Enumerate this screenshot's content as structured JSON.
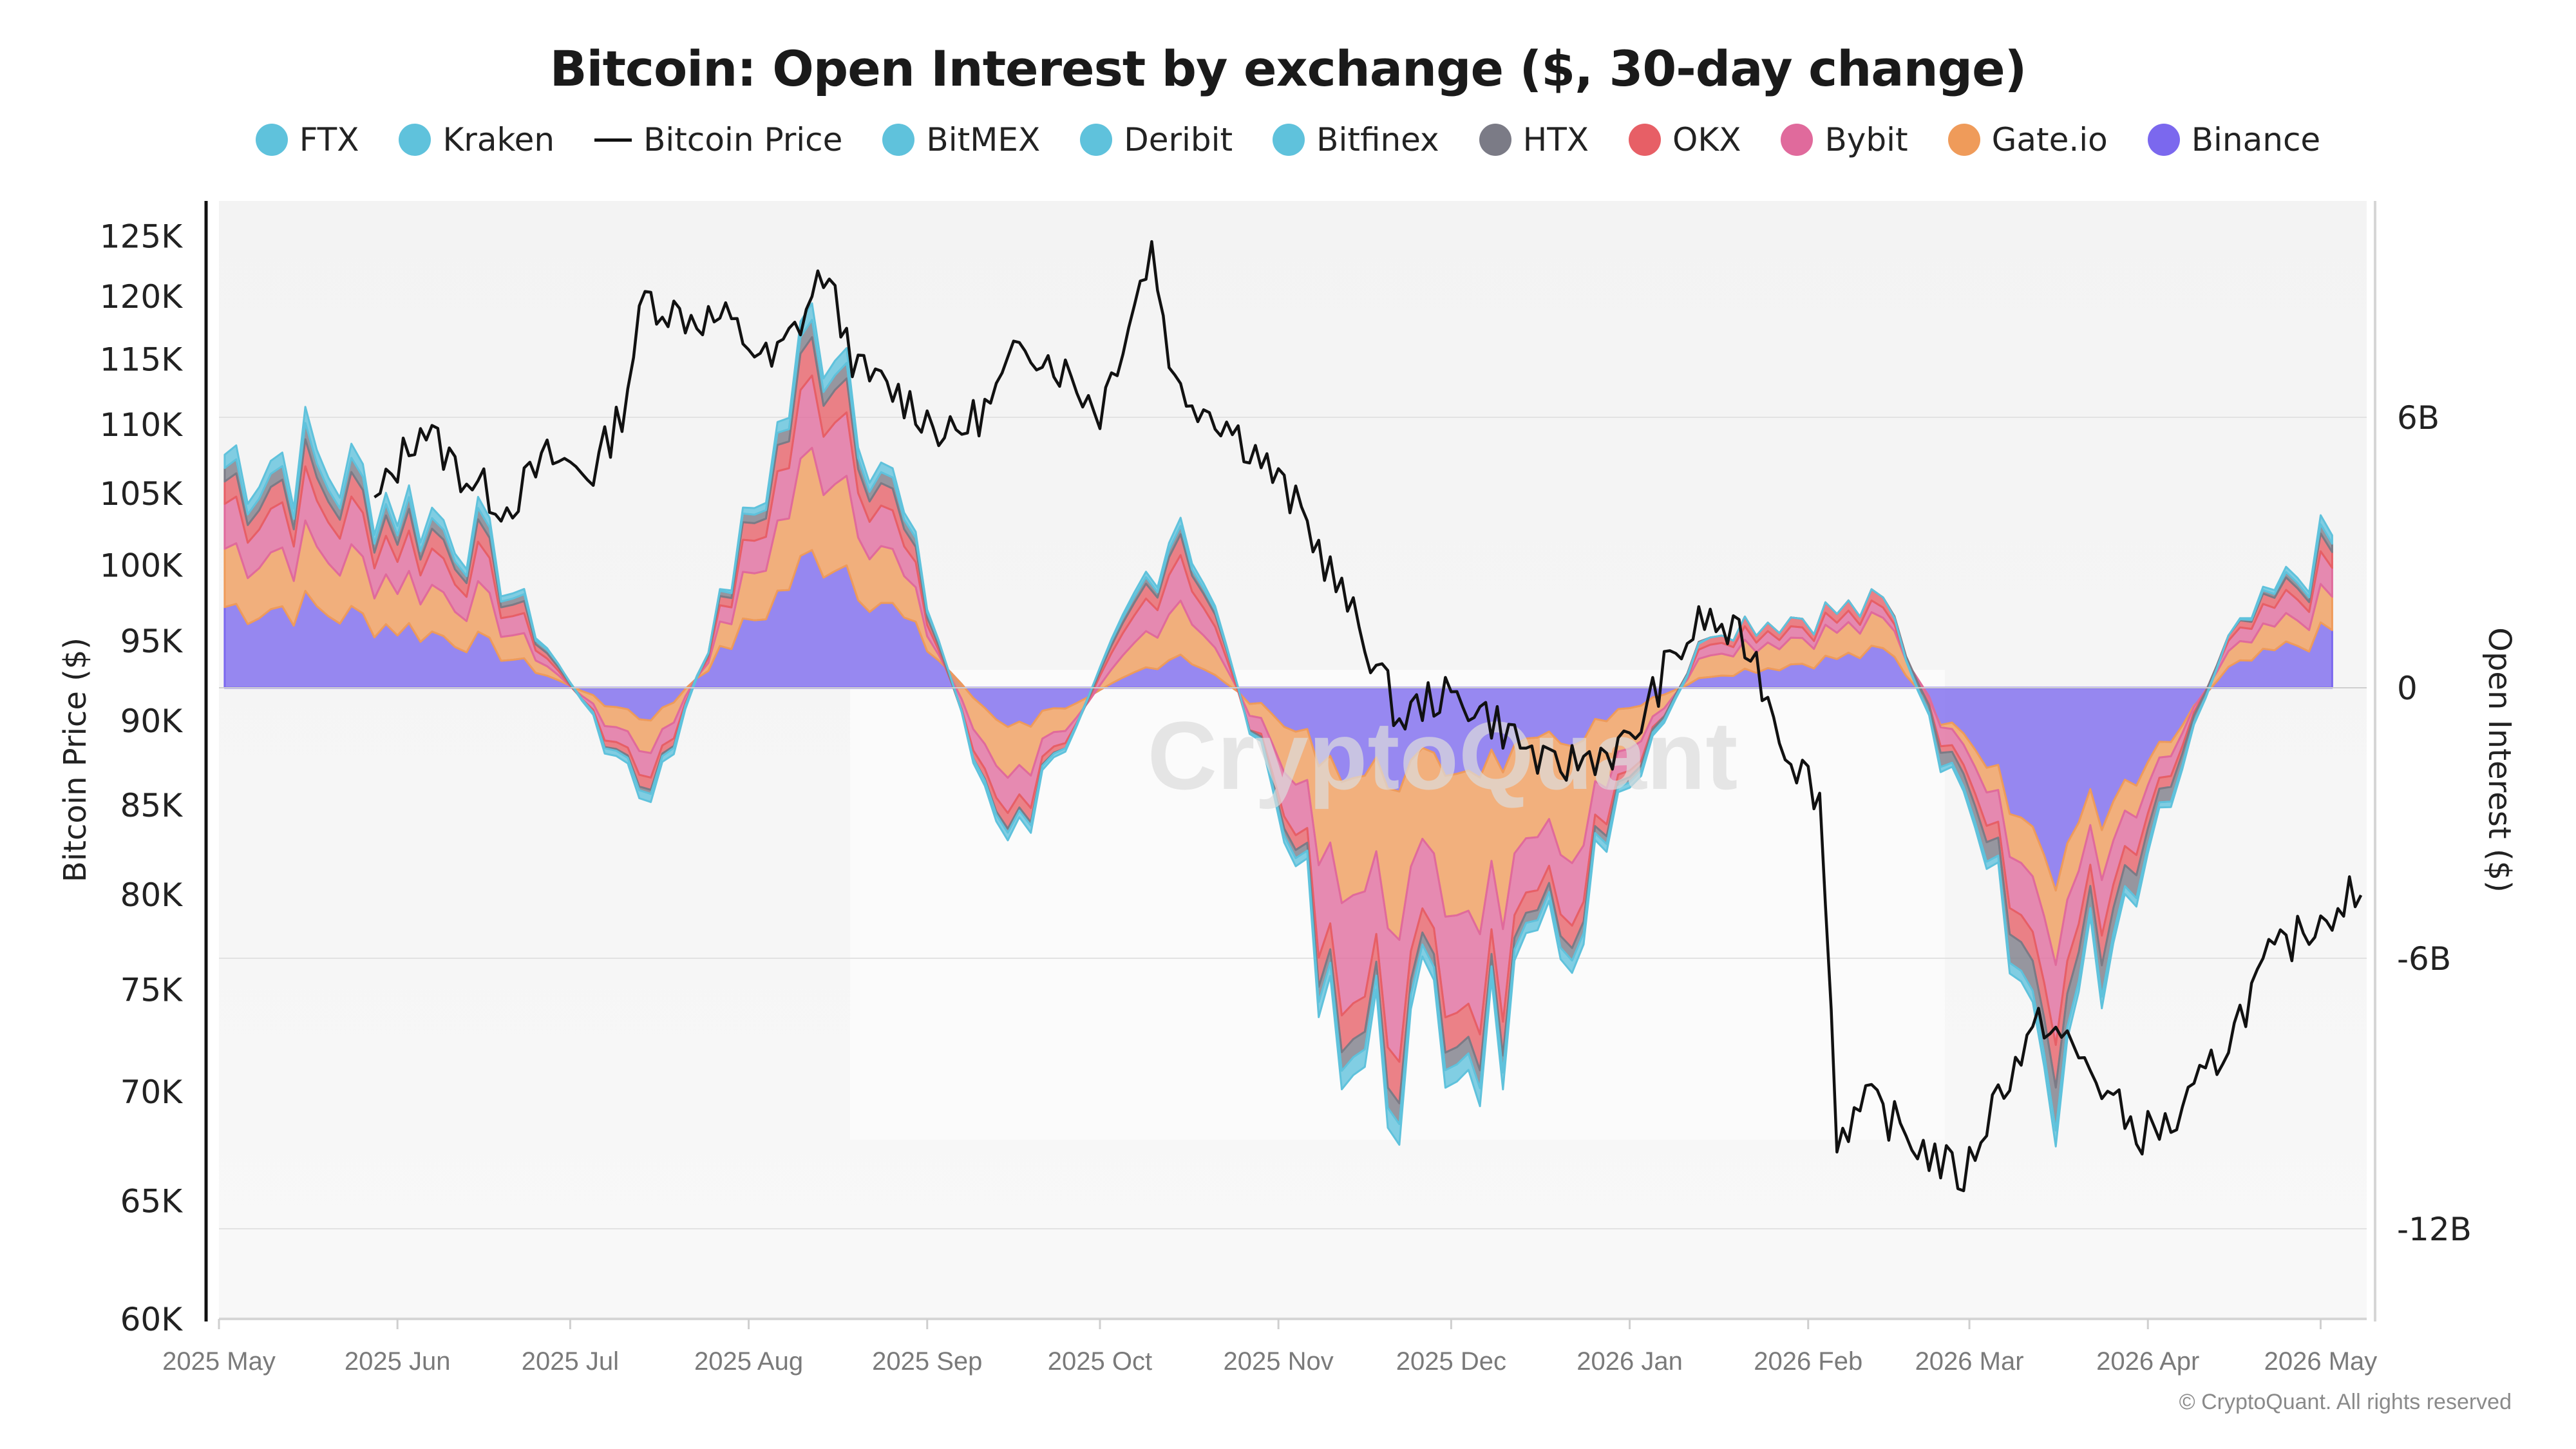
{
  "title": "Bitcoin: Open Interest by exchange ($, 30-day change)",
  "copyright": "© CryptoQuant. All rights reserved",
  "watermark": "CryptoQuant",
  "legend": [
    {
      "name": "FTX",
      "color": "#5fc2dc",
      "kind": "circle"
    },
    {
      "name": "Kraken",
      "color": "#5fc2dc",
      "kind": "circle"
    },
    {
      "name": "Bitcoin Price",
      "color": "#111111",
      "kind": "line"
    },
    {
      "name": "BitMEX",
      "color": "#5fc2dc",
      "kind": "circle"
    },
    {
      "name": "Deribit",
      "color": "#5fc2dc",
      "kind": "circle"
    },
    {
      "name": "Bitfinex",
      "color": "#5fc2dc",
      "kind": "circle"
    },
    {
      "name": "HTX",
      "color": "#7b7b86",
      "kind": "circle"
    },
    {
      "name": "OKX",
      "color": "#e75f66",
      "kind": "circle"
    },
    {
      "name": "Bybit",
      "color": "#e06a9c",
      "kind": "circle"
    },
    {
      "name": "Gate.io",
      "color": "#ef9b5a",
      "kind": "circle"
    },
    {
      "name": "Binance",
      "color": "#7b68ee",
      "kind": "circle"
    }
  ],
  "chart_data": {
    "type": "area",
    "title": "Bitcoin: Open Interest by exchange ($, 30-day change)",
    "ylabel_left": "Bitcoin Price ($)",
    "ylabel_right": "Open Interest ($)",
    "left_axis": {
      "scale": "log",
      "ticks": [
        60000,
        65000,
        70000,
        75000,
        80000,
        85000,
        90000,
        95000,
        100000,
        105000,
        110000,
        115000,
        120000,
        125000
      ],
      "tick_labels": [
        "60K",
        "65K",
        "70K",
        "75K",
        "80K",
        "85K",
        "90K",
        "95K",
        "100K",
        "105K",
        "110K",
        "115K",
        "120K",
        "125K"
      ],
      "range": [
        60000,
        128000
      ]
    },
    "right_axis": {
      "ticks": [
        6,
        0,
        -6,
        -12
      ],
      "tick_labels": [
        "6B",
        "0",
        "-6B",
        "-12B"
      ],
      "unit": "billion USD",
      "range": [
        -14,
        10.8
      ]
    },
    "x_ticks": [
      "2025 May",
      "2025 Jun",
      "2025 Jul",
      "2025 Aug",
      "2025 Sep",
      "2025 Oct",
      "2025 Nov",
      "2025 Dec",
      "2026 Jan",
      "2026 Feb",
      "2026 Mar",
      "2026 Apr",
      "2026 May"
    ],
    "grid": true,
    "legend_position": "top-center",
    "series": [
      {
        "name": "Bitcoin Price",
        "kind": "line",
        "color": "#111111",
        "x": [
          "2025-05-01",
          "2025-05-10",
          "2025-05-20",
          "2025-05-28",
          "2025-06-05",
          "2025-06-12",
          "2025-06-20",
          "2025-06-27",
          "2025-07-05",
          "2025-07-10",
          "2025-07-14",
          "2025-07-20",
          "2025-07-28",
          "2025-08-05",
          "2025-08-10",
          "2025-08-14",
          "2025-08-20",
          "2025-08-28",
          "2025-09-05",
          "2025-09-12",
          "2025-09-18",
          "2025-09-25",
          "2025-10-01",
          "2025-10-06",
          "2025-10-10",
          "2025-10-14",
          "2025-10-22",
          "2025-10-28",
          "2025-11-05",
          "2025-11-12",
          "2025-11-18",
          "2025-11-22",
          "2025-11-28",
          "2025-12-05",
          "2025-12-12",
          "2025-12-18",
          "2025-12-26",
          "2026-01-01",
          "2026-01-07",
          "2026-01-14",
          "2026-01-22",
          "2026-01-28",
          "2026-02-03",
          "2026-02-06",
          "2026-02-12",
          "2026-02-20",
          "2026-02-28",
          "2026-03-06",
          "2026-03-14",
          "2026-03-22",
          "2026-03-30",
          "2026-04-06",
          "2026-04-14",
          "2026-04-22",
          "2026-04-30",
          "2026-05-06",
          "2026-05-08"
        ],
        "y": [
          null,
          null,
          null,
          104000,
          110000,
          106500,
          104000,
          107500,
          106500,
          111000,
          120000,
          118500,
          118000,
          114500,
          118000,
          122000,
          114000,
          112000,
          109000,
          111500,
          116500,
          114000,
          111000,
          118000,
          124000,
          113000,
          110500,
          108000,
          103500,
          98000,
          93500,
          90000,
          91500,
          91000,
          89000,
          87000,
          88000,
          88500,
          93000,
          96500,
          94500,
          88500,
          85500,
          68000,
          69500,
          67500,
          66000,
          70000,
          73500,
          71000,
          68000,
          68500,
          72000,
          76500,
          78500,
          80000,
          79000
        ]
      },
      {
        "name": "Binance",
        "kind": "area",
        "color": "#7b68ee",
        "x": [
          "2025-05",
          "2025-06",
          "2025-07",
          "2025-08",
          "2025-09",
          "2025-10",
          "2025-11",
          "2025-12",
          "2026-01",
          "2026-02",
          "2026-03",
          "2026-04",
          "2026-05"
        ],
        "y": [
          1.8,
          1.0,
          -0.8,
          3.2,
          -1.0,
          0.8,
          -2.0,
          -1.5,
          0.3,
          0.8,
          -3.8,
          0.4,
          1.8
        ]
      },
      {
        "name": "Gate.io",
        "kind": "area",
        "color": "#ef9b5a",
        "x": [
          "2025-05",
          "2025-06",
          "2025-07",
          "2025-08",
          "2025-09",
          "2025-10",
          "2025-11",
          "2025-12",
          "2026-01",
          "2026-02",
          "2026-03",
          "2026-04",
          "2026-05"
        ],
        "y": [
          1.3,
          0.9,
          -0.8,
          2.4,
          -1.3,
          1.3,
          -2.6,
          -3.0,
          0.6,
          0.6,
          -1.4,
          0.3,
          1.0
        ]
      },
      {
        "name": "Bybit",
        "kind": "area",
        "color": "#e06a9c",
        "x": [
          "2025-05",
          "2025-06",
          "2025-07",
          "2025-08",
          "2025-09",
          "2025-10",
          "2025-11",
          "2025-12",
          "2026-01",
          "2026-02",
          "2026-03",
          "2026-04",
          "2026-05"
        ],
        "y": [
          1.0,
          0.7,
          -0.6,
          1.7,
          -0.9,
          1.1,
          -2.4,
          -1.6,
          0.3,
          0.2,
          -1.5,
          0.2,
          0.9
        ]
      },
      {
        "name": "OKX",
        "kind": "area",
        "color": "#e75f66",
        "x": [
          "2025-05",
          "2025-06",
          "2025-07",
          "2025-08",
          "2025-09",
          "2025-10",
          "2025-11",
          "2025-12",
          "2026-01",
          "2026-02",
          "2026-03",
          "2026-04",
          "2026-05"
        ],
        "y": [
          0.5,
          0.4,
          -0.3,
          0.9,
          -0.4,
          0.5,
          -0.8,
          -0.6,
          0.2,
          0.2,
          -0.8,
          0.1,
          0.5
        ]
      },
      {
        "name": "HTX",
        "kind": "area",
        "color": "#7b7b86",
        "x": [
          "2025-05",
          "2025-06",
          "2025-07",
          "2025-08",
          "2025-09",
          "2025-10",
          "2025-11",
          "2025-12",
          "2026-01",
          "2026-02",
          "2026-03",
          "2026-04",
          "2026-05"
        ],
        "y": [
          0.3,
          0.2,
          -0.1,
          0.4,
          -0.1,
          0.2,
          -0.4,
          -0.3,
          0.0,
          0.0,
          -0.8,
          0.0,
          0.3
        ]
      },
      {
        "name": "Bitfinex",
        "kind": "area",
        "color": "#5fc2dc",
        "x": [
          "2025-05",
          "2025-06",
          "2025-07",
          "2025-08",
          "2025-09",
          "2025-10",
          "2025-11",
          "2025-12",
          "2026-01",
          "2026-02",
          "2026-03",
          "2026-04",
          "2026-05"
        ],
        "y": [
          0.3,
          0.2,
          -0.2,
          0.4,
          -0.2,
          0.2,
          -0.4,
          -0.3,
          0.0,
          0.0,
          -0.3,
          0.0,
          0.3
        ]
      },
      {
        "name": "Deribit",
        "kind": "area",
        "color": "#5fc2dc",
        "x": [],
        "y": []
      },
      {
        "name": "BitMEX",
        "kind": "area",
        "color": "#5fc2dc",
        "x": [],
        "y": []
      },
      {
        "name": "Kraken",
        "kind": "area",
        "color": "#5fc2dc",
        "x": [],
        "y": []
      },
      {
        "name": "FTX",
        "kind": "area",
        "color": "#5fc2dc",
        "x": [],
        "y": []
      }
    ]
  }
}
